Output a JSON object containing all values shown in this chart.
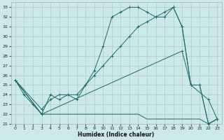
{
  "xlabel": "Humidex (Indice chaleur)",
  "bg_color": "#cce8e8",
  "grid_color": "#aacccc",
  "line_color": "#1a6b6b",
  "xlim": [
    -0.5,
    23.5
  ],
  "ylim": [
    21,
    33.5
  ],
  "xticks": [
    0,
    1,
    2,
    3,
    4,
    5,
    6,
    7,
    8,
    9,
    10,
    11,
    12,
    13,
    14,
    15,
    16,
    17,
    18,
    19,
    20,
    21,
    22,
    23
  ],
  "yticks": [
    21,
    22,
    23,
    24,
    25,
    26,
    27,
    28,
    29,
    30,
    31,
    32,
    33
  ],
  "line1_x": [
    0,
    1,
    2,
    3,
    4,
    5,
    6,
    7,
    8,
    9,
    10,
    11,
    12,
    13,
    14,
    15,
    16,
    17,
    18,
    19,
    20,
    21,
    22,
    23
  ],
  "line1_y": [
    25.5,
    24,
    23,
    22,
    24,
    23.5,
    24,
    23.5,
    25,
    26.5,
    29,
    32,
    32.5,
    33,
    33,
    32.5,
    32,
    32,
    33,
    31,
    25,
    25,
    21,
    21.5
  ],
  "line2_x": [
    0,
    3,
    4,
    5,
    6,
    7,
    8,
    9,
    10,
    11,
    12,
    13,
    14,
    15,
    16,
    17,
    18,
    19,
    20,
    21,
    22,
    23
  ],
  "line2_y": [
    25.5,
    22.5,
    23.5,
    24,
    24,
    24,
    25,
    26,
    27,
    28,
    29,
    30,
    31,
    31.5,
    32,
    32.5,
    33,
    31,
    25,
    25,
    21,
    21.5
  ],
  "line3_x": [
    0,
    3,
    4,
    5,
    6,
    7,
    8,
    9,
    10,
    11,
    12,
    13,
    14,
    15,
    16,
    17,
    18,
    19,
    20,
    21,
    22,
    23
  ],
  "line3_y": [
    25.5,
    22,
    22,
    22,
    22,
    22,
    22,
    22,
    22,
    22,
    22,
    22,
    22,
    21.5,
    21.5,
    21.5,
    21.5,
    21.5,
    21.5,
    21.5,
    21,
    21.5
  ],
  "line4_x": [
    0,
    3,
    19,
    20,
    22,
    23
  ],
  "line4_y": [
    25.5,
    22,
    28.5,
    25,
    23.5,
    21.5
  ]
}
